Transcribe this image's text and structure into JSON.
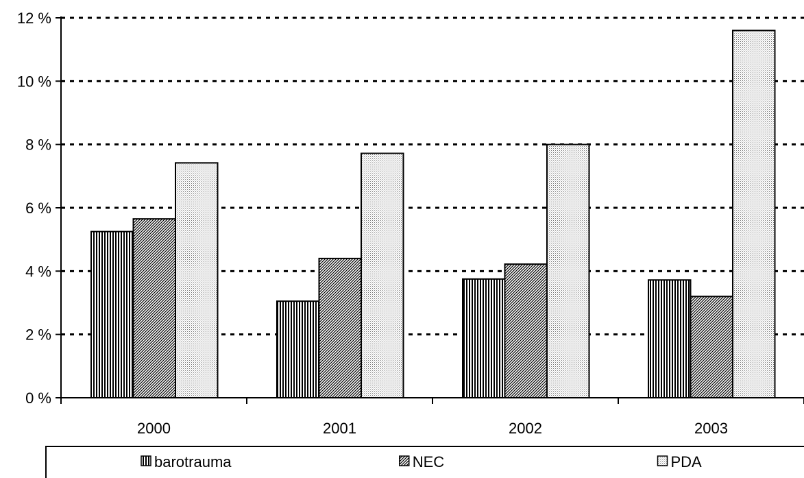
{
  "chart_data": {
    "type": "bar",
    "title": "",
    "xlabel": "",
    "ylabel": "",
    "categories": [
      "2000",
      "2001",
      "2002",
      "2003"
    ],
    "series": [
      {
        "name": "barotrauma",
        "pattern": "vertical-lines",
        "values": [
          5.25,
          3.05,
          3.75,
          3.72
        ]
      },
      {
        "name": "NEC",
        "pattern": "diagonal-hatch",
        "values": [
          5.65,
          4.4,
          4.22,
          3.2
        ]
      },
      {
        "name": "PDA",
        "pattern": "fine-dots",
        "values": [
          7.42,
          7.72,
          8.0,
          11.6
        ]
      }
    ],
    "ylim": [
      0,
      12
    ],
    "y_ticks": [
      0,
      2,
      4,
      6,
      8,
      10,
      12
    ],
    "y_tick_labels": [
      "0 %",
      "2 %",
      "4 %",
      "6 %",
      "8 %",
      "10 %",
      "12 %"
    ],
    "grid": "horizontal dotted",
    "legend_position": "bottom",
    "colors": {
      "bar_stroke": "#000000",
      "background": "#ffffff"
    }
  }
}
